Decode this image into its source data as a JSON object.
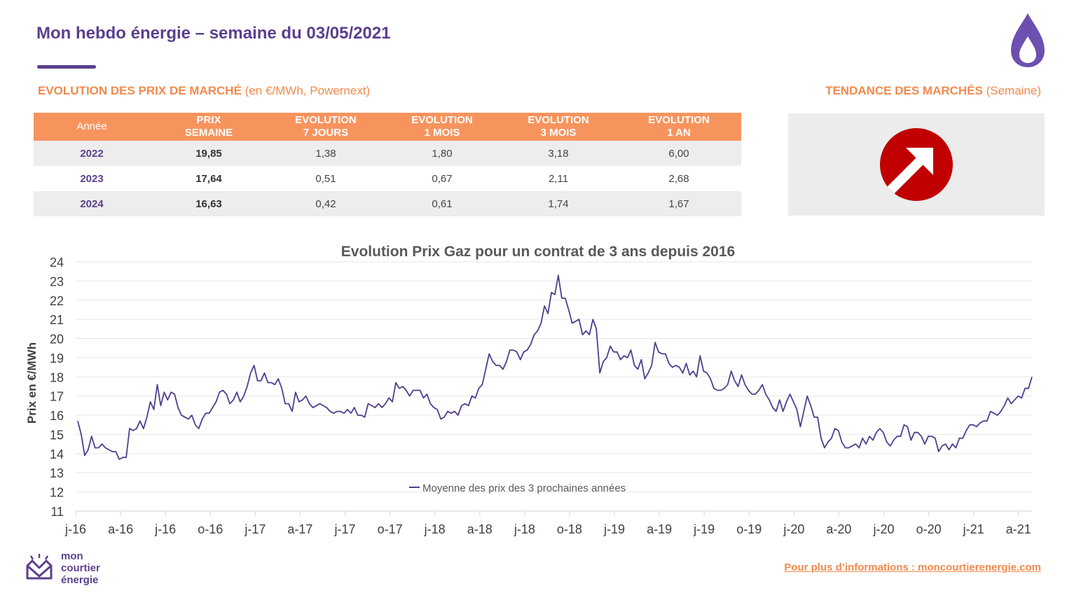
{
  "header": {
    "title": "Mon hebdo énergie – semaine du 03/05/2021"
  },
  "market_prices": {
    "title_bold": "EVOLUTION DES PRIX DE MARCHÉ",
    "title_unit": " (en €/MWh, Powernext)",
    "columns": [
      {
        "line1": "Année",
        "line2": ""
      },
      {
        "line1": "PRIX",
        "line2": "SEMAINE"
      },
      {
        "line1": "EVOLUTION",
        "line2": "7 JOURS"
      },
      {
        "line1": "EVOLUTION",
        "line2": "1 MOIS"
      },
      {
        "line1": "EVOLUTION",
        "line2": "3 MOIS"
      },
      {
        "line1": "EVOLUTION",
        "line2": "1 AN"
      }
    ],
    "rows": [
      {
        "year": "2022",
        "price": "19,85",
        "ev7d": "1,38",
        "ev1m": "1,80",
        "ev3m": "3,18",
        "ev1y": "6,00"
      },
      {
        "year": "2023",
        "price": "17,64",
        "ev7d": "0,51",
        "ev1m": "0,67",
        "ev3m": "2,11",
        "ev1y": "2,68"
      },
      {
        "year": "2024",
        "price": "16,63",
        "ev7d": "0,42",
        "ev1m": "0,61",
        "ev3m": "1,74",
        "ev1y": "1,67"
      }
    ]
  },
  "trend": {
    "title_bold": "TENDANCE DES MARCHÉS",
    "title_suffix": " (Semaine)",
    "direction": "up",
    "icon": "arrow-up-right-icon",
    "color": "#c00000"
  },
  "chart_data": {
    "type": "line",
    "title": "Evolution Prix Gaz pour un contrat de 3 ans depuis 2016",
    "xlabel": "",
    "ylabel": "Prix en €/MWh",
    "ylim": [
      11,
      24
    ],
    "yticks": [
      11,
      12,
      13,
      14,
      15,
      16,
      17,
      18,
      19,
      20,
      21,
      22,
      23,
      24
    ],
    "xticks": [
      "j-16",
      "a-16",
      "j-16",
      "o-16",
      "j-17",
      "a-17",
      "j-17",
      "o-17",
      "j-18",
      "a-18",
      "j-18",
      "o-18",
      "j-19",
      "a-19",
      "j-19",
      "o-19",
      "j-20",
      "a-20",
      "j-20",
      "o-20",
      "j-21",
      "a-21"
    ],
    "x_unit": "weekly prices from January 2016 to May 2021",
    "grid": true,
    "legend_position": "bottom-center",
    "series": [
      {
        "name": "Moyenne des prix des 3 prochaines années",
        "color": "#4e3e8f",
        "values": [
          15.7,
          15.0,
          13.9,
          14.2,
          14.9,
          14.3,
          14.3,
          14.5,
          14.3,
          14.2,
          14.1,
          14.1,
          13.7,
          13.8,
          13.8,
          15.3,
          15.2,
          15.3,
          15.7,
          15.3,
          15.9,
          16.7,
          16.3,
          17.6,
          16.5,
          17.2,
          16.8,
          17.2,
          17.1,
          16.4,
          16.0,
          15.9,
          15.8,
          16.0,
          15.5,
          15.3,
          15.8,
          16.1,
          16.1,
          16.4,
          16.7,
          17.2,
          17.3,
          17.1,
          16.6,
          16.8,
          17.2,
          16.7,
          17.0,
          17.5,
          18.2,
          18.6,
          17.8,
          17.8,
          18.2,
          17.7,
          17.7,
          17.6,
          17.9,
          17.4,
          16.6,
          16.6,
          16.2,
          17.2,
          16.7,
          16.8,
          17.0,
          16.6,
          16.4,
          16.5,
          16.6,
          16.5,
          16.4,
          16.2,
          16.1,
          16.2,
          16.2,
          16.1,
          16.3,
          16.1,
          16.4,
          16.0,
          16.0,
          15.9,
          16.6,
          16.5,
          16.4,
          16.6,
          16.4,
          16.6,
          16.9,
          16.7,
          17.7,
          17.4,
          17.5,
          17.3,
          17.0,
          17.3,
          17.3,
          17.3,
          16.9,
          17.1,
          16.6,
          16.4,
          16.3,
          15.8,
          15.9,
          16.2,
          16.1,
          16.2,
          16.0,
          16.5,
          16.6,
          16.5,
          17.0,
          16.9,
          17.4,
          17.6,
          18.4,
          19.2,
          18.8,
          18.6,
          18.6,
          18.4,
          18.8,
          19.4,
          19.4,
          19.3,
          18.9,
          19.3,
          19.4,
          19.7,
          20.2,
          20.4,
          20.8,
          21.7,
          21.3,
          22.4,
          22.3,
          23.3,
          22.1,
          22.1,
          21.5,
          20.8,
          20.9,
          21.0,
          20.2,
          20.4,
          20.2,
          21.0,
          20.5,
          18.2,
          18.8,
          19.0,
          19.6,
          19.3,
          19.3,
          18.9,
          19.1,
          19.0,
          19.4,
          18.6,
          18.4,
          18.9,
          17.9,
          18.2,
          18.6,
          19.8,
          19.3,
          19.2,
          19.2,
          18.7,
          18.5,
          18.6,
          18.5,
          18.2,
          18.7,
          18.1,
          18.3,
          18.0,
          19.1,
          18.3,
          18.2,
          17.9,
          17.4,
          17.3,
          17.3,
          17.4,
          17.6,
          18.3,
          17.8,
          17.5,
          18.1,
          17.6,
          17.3,
          17.1,
          17.1,
          17.3,
          17.6,
          17.1,
          16.8,
          16.4,
          16.2,
          16.8,
          16.2,
          16.7,
          17.1,
          16.7,
          16.3,
          15.4,
          16.2,
          17.0,
          16.5,
          15.9,
          15.9,
          14.8,
          14.3,
          14.6,
          14.8,
          15.3,
          15.2,
          14.6,
          14.3,
          14.3,
          14.4,
          14.5,
          14.3,
          14.8,
          14.5,
          14.9,
          14.7,
          15.1,
          15.3,
          15.1,
          14.6,
          14.4,
          14.7,
          14.9,
          14.9,
          15.5,
          15.4,
          14.7,
          15.1,
          15.1,
          14.9,
          14.5,
          14.9,
          14.9,
          14.8,
          14.1,
          14.4,
          14.5,
          14.2,
          14.5,
          14.3,
          14.8,
          14.8,
          15.2,
          15.5,
          15.5,
          15.4,
          15.6,
          15.7,
          15.7,
          16.2,
          16.1,
          16.0,
          16.2,
          16.5,
          16.9,
          16.6,
          16.8,
          17.0,
          16.9,
          17.4,
          17.4,
          18.0
        ]
      }
    ]
  },
  "footer": {
    "logo_text": "mon\ncourtier\nénergie",
    "link": "Pour plus d’informations : moncourtierenergie.com"
  }
}
